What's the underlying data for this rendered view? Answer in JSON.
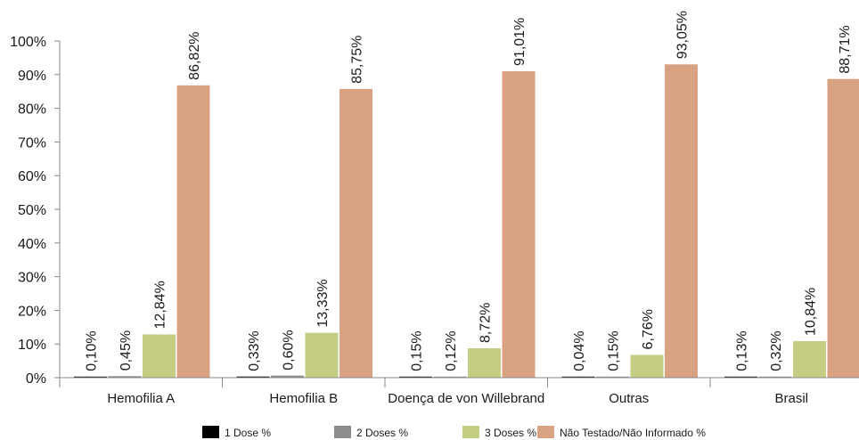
{
  "chart_data": {
    "type": "bar",
    "categories": [
      "Hemofilia A",
      "Hemofilia B",
      "Doença de von Willebrand",
      "Outras",
      "Brasil"
    ],
    "series": [
      {
        "name": "1 Dose %",
        "color": "#000000",
        "values": [
          0.1,
          0.33,
          0.15,
          0.04,
          0.13
        ],
        "labels": [
          "0,10%",
          "0,33%",
          "0,15%",
          "0,04%",
          "0,13%"
        ]
      },
      {
        "name": "2 Doses %",
        "color": "#8c8c8c",
        "values": [
          0.45,
          0.6,
          0.12,
          0.15,
          0.32
        ],
        "labels": [
          "0,45%",
          "0,60%",
          "0,12%",
          "0,15%",
          "0,32%"
        ]
      },
      {
        "name": "3 Doses %",
        "color": "#c5cd85",
        "values": [
          12.84,
          13.33,
          8.72,
          6.76,
          10.84
        ],
        "labels": [
          "12,84%",
          "13,33%",
          "8,72%",
          "6,76%",
          "10,84%"
        ]
      },
      {
        "name": "Não Testado/Não Informado %",
        "color": "#d8a283",
        "values": [
          86.82,
          85.75,
          91.01,
          93.05,
          88.71
        ],
        "labels": [
          "86,82%",
          "85,75%",
          "91,01%",
          "93,05%",
          "88,71%"
        ]
      }
    ],
    "y_ticks": [
      "0%",
      "10%",
      "20%",
      "30%",
      "40%",
      "50%",
      "60%",
      "70%",
      "80%",
      "90%",
      "100%"
    ],
    "ylim": [
      0,
      100
    ],
    "grid": false,
    "legend_position": "bottom"
  }
}
